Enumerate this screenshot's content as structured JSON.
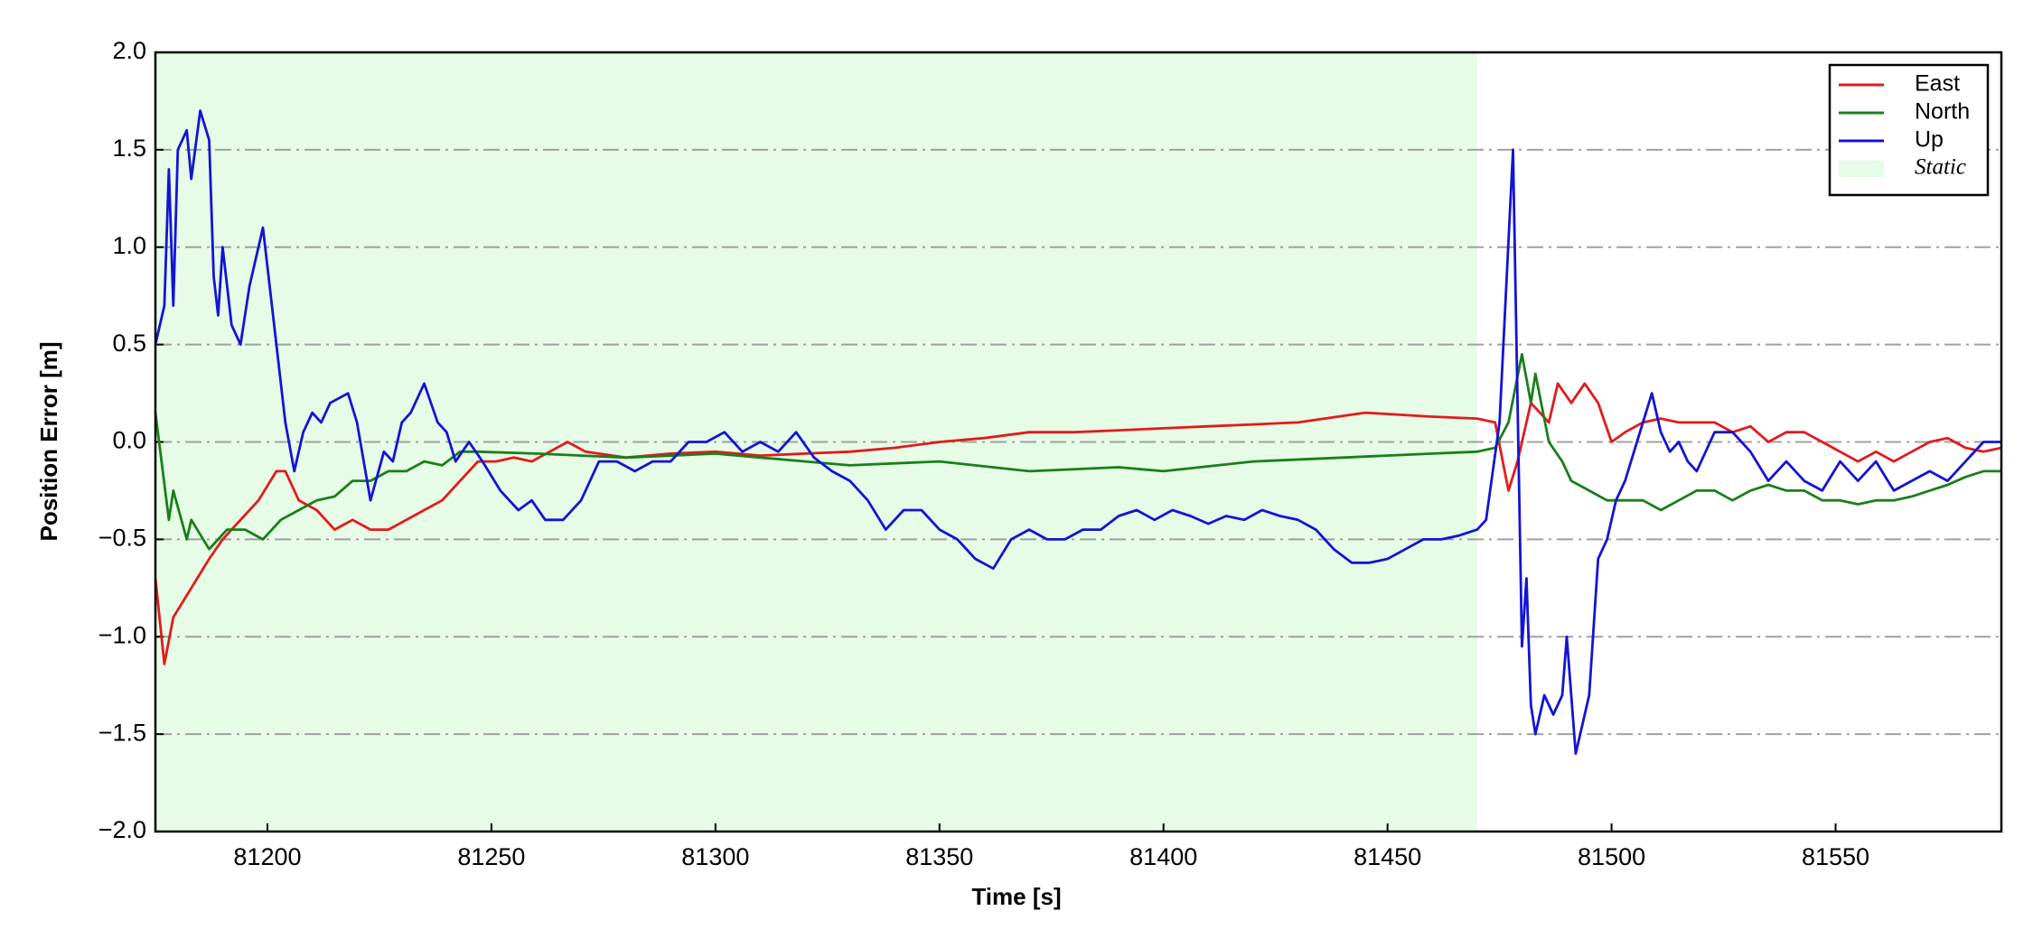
{
  "chart_data": {
    "type": "line",
    "xlabel": "Time [s]",
    "ylabel": "Position Error [m]",
    "xlim": [
      81175,
      81587
    ],
    "ylim": [
      -2.0,
      2.0
    ],
    "xticks": [
      81200,
      81250,
      81300,
      81350,
      81400,
      81450,
      81500,
      81550
    ],
    "yticks": [
      {
        "value": -2.0,
        "label": "−2.0"
      },
      {
        "value": -1.5,
        "label": "−1.5"
      },
      {
        "value": -1.0,
        "label": "−1.0"
      },
      {
        "value": -0.5,
        "label": "−0.5"
      },
      {
        "value": 0.0,
        "label": "0.0"
      },
      0.5,
      {
        "value": 1.0,
        "label": "1.0"
      },
      1.5,
      {
        "value": 2.0,
        "label": "2.0"
      }
    ],
    "grid": true,
    "legend": "upper right",
    "span": {
      "name": "Static",
      "color": "#e6fce6",
      "x": [
        81175,
        81470
      ]
    },
    "series": [
      {
        "name": "East",
        "color": "#e31a1c",
        "x": [
          81175,
          81177,
          81179,
          81183,
          81187,
          81190,
          81194,
          81198,
          81202,
          81204,
          81207,
          81211,
          81215,
          81219,
          81223,
          81227,
          81231,
          81235,
          81239,
          81243,
          81247,
          81251,
          81255,
          81259,
          81263,
          81267,
          81271,
          81280,
          81290,
          81300,
          81310,
          81320,
          81330,
          81340,
          81350,
          81360,
          81370,
          81380,
          81390,
          81400,
          81410,
          81420,
          81430,
          81445,
          81460,
          81470,
          81474,
          81477,
          81479,
          81482,
          81484,
          81486,
          81488,
          81491,
          81494,
          81497,
          81500,
          81503,
          81507,
          81511,
          81515,
          81519,
          81523,
          81527,
          81531,
          81535,
          81539,
          81543,
          81547,
          81551,
          81555,
          81559,
          81563,
          81567,
          81571,
          81575,
          81579,
          81583,
          81587
        ],
        "values": [
          -0.7,
          -1.14,
          -0.9,
          -0.75,
          -0.6,
          -0.5,
          -0.4,
          -0.3,
          -0.15,
          -0.15,
          -0.3,
          -0.35,
          -0.45,
          -0.4,
          -0.45,
          -0.45,
          -0.4,
          -0.35,
          -0.3,
          -0.2,
          -0.1,
          -0.1,
          -0.08,
          -0.1,
          -0.05,
          0.0,
          -0.05,
          -0.08,
          -0.06,
          -0.05,
          -0.07,
          -0.06,
          -0.05,
          -0.03,
          0.0,
          0.02,
          0.05,
          0.05,
          0.06,
          0.07,
          0.08,
          0.09,
          0.1,
          0.15,
          0.13,
          0.12,
          0.1,
          -0.25,
          -0.1,
          0.2,
          0.15,
          0.1,
          0.3,
          0.2,
          0.3,
          0.2,
          0.0,
          0.05,
          0.1,
          0.12,
          0.1,
          0.1,
          0.1,
          0.05,
          0.08,
          0.0,
          0.05,
          0.05,
          0.0,
          -0.05,
          -0.1,
          -0.05,
          -0.1,
          -0.05,
          0.0,
          0.02,
          -0.03,
          -0.05,
          -0.03
        ]
      },
      {
        "name": "North",
        "color": "#1a7f1a",
        "x": [
          81175,
          81178,
          81179,
          81182,
          81183,
          81187,
          81191,
          81195,
          81199,
          81203,
          81207,
          81211,
          81215,
          81219,
          81223,
          81227,
          81231,
          81235,
          81239,
          81243,
          81247,
          81260,
          81280,
          81300,
          81310,
          81320,
          81330,
          81350,
          81370,
          81390,
          81400,
          81420,
          81440,
          81460,
          81470,
          81474,
          81477,
          81480,
          81482,
          81483,
          81486,
          81489,
          81491,
          81495,
          81499,
          81503,
          81507,
          81511,
          81515,
          81519,
          81523,
          81527,
          81531,
          81535,
          81539,
          81543,
          81547,
          81551,
          81555,
          81559,
          81563,
          81567,
          81571,
          81575,
          81579,
          81583,
          81587
        ],
        "values": [
          0.15,
          -0.4,
          -0.25,
          -0.5,
          -0.4,
          -0.55,
          -0.45,
          -0.45,
          -0.5,
          -0.4,
          -0.35,
          -0.3,
          -0.28,
          -0.2,
          -0.2,
          -0.15,
          -0.15,
          -0.1,
          -0.12,
          -0.05,
          -0.05,
          -0.06,
          -0.08,
          -0.06,
          -0.08,
          -0.1,
          -0.12,
          -0.1,
          -0.15,
          -0.13,
          -0.15,
          -0.1,
          -0.08,
          -0.06,
          -0.05,
          -0.03,
          0.1,
          0.45,
          0.2,
          0.35,
          0.0,
          -0.1,
          -0.2,
          -0.25,
          -0.3,
          -0.3,
          -0.3,
          -0.35,
          -0.3,
          -0.25,
          -0.25,
          -0.3,
          -0.25,
          -0.22,
          -0.25,
          -0.25,
          -0.3,
          -0.3,
          -0.32,
          -0.3,
          -0.3,
          -0.28,
          -0.25,
          -0.22,
          -0.18,
          -0.15,
          -0.15
        ]
      },
      {
        "name": "Up",
        "color": "#1414d4",
        "x": [
          81175,
          81177,
          81178,
          81179,
          81180,
          81182,
          81183,
          81185,
          81187,
          81188,
          81189,
          81190,
          81192,
          81194,
          81196,
          81199,
          81202,
          81204,
          81206,
          81208,
          81210,
          81212,
          81214,
          81218,
          81220,
          81223,
          81226,
          81228,
          81230,
          81232,
          81235,
          81238,
          81240,
          81242,
          81245,
          81248,
          81252,
          81256,
          81259,
          81262,
          81266,
          81270,
          81274,
          81278,
          81282,
          81286,
          81290,
          81294,
          81298,
          81302,
          81306,
          81310,
          81314,
          81318,
          81322,
          81326,
          81330,
          81334,
          81338,
          81342,
          81346,
          81350,
          81354,
          81358,
          81362,
          81366,
          81370,
          81374,
          81378,
          81382,
          81386,
          81390,
          81394,
          81398,
          81402,
          81406,
          81410,
          81414,
          81418,
          81422,
          81426,
          81430,
          81434,
          81438,
          81442,
          81446,
          81450,
          81454,
          81458,
          81462,
          81466,
          81470,
          81472,
          81475,
          81478,
          81480,
          81481,
          81482,
          81483,
          81485,
          81487,
          81489,
          81490,
          81492,
          81493,
          81495,
          81497,
          81499,
          81501,
          81503,
          81505,
          81507,
          81509,
          81511,
          81513,
          81515,
          81517,
          81519,
          81523,
          81527,
          81531,
          81535,
          81539,
          81543,
          81547,
          81551,
          81555,
          81559,
          81563,
          81567,
          81571,
          81575,
          81579,
          81583,
          81587
        ],
        "values": [
          0.5,
          0.7,
          1.4,
          0.7,
          1.5,
          1.6,
          1.35,
          1.7,
          1.55,
          0.85,
          0.65,
          1.0,
          0.6,
          0.5,
          0.8,
          1.1,
          0.5,
          0.1,
          -0.15,
          0.05,
          0.15,
          0.1,
          0.2,
          0.25,
          0.1,
          -0.3,
          -0.05,
          -0.1,
          0.1,
          0.15,
          0.3,
          0.1,
          0.05,
          -0.1,
          0.0,
          -0.1,
          -0.25,
          -0.35,
          -0.3,
          -0.4,
          -0.4,
          -0.3,
          -0.1,
          -0.1,
          -0.15,
          -0.1,
          -0.1,
          0.0,
          0.0,
          0.05,
          -0.05,
          0.0,
          -0.05,
          0.05,
          -0.08,
          -0.15,
          -0.2,
          -0.3,
          -0.45,
          -0.35,
          -0.35,
          -0.45,
          -0.5,
          -0.6,
          -0.65,
          -0.5,
          -0.45,
          -0.5,
          -0.5,
          -0.45,
          -0.45,
          -0.38,
          -0.35,
          -0.4,
          -0.35,
          -0.38,
          -0.42,
          -0.38,
          -0.4,
          -0.35,
          -0.38,
          -0.4,
          -0.45,
          -0.55,
          -0.62,
          -0.62,
          -0.6,
          -0.55,
          -0.5,
          -0.5,
          -0.48,
          -0.45,
          -0.4,
          0.1,
          1.5,
          -1.05,
          -0.7,
          -1.35,
          -1.5,
          -1.3,
          -1.4,
          -1.3,
          -1.0,
          -1.6,
          -1.5,
          -1.3,
          -0.6,
          -0.5,
          -0.3,
          -0.2,
          -0.05,
          0.1,
          0.25,
          0.05,
          -0.05,
          0.0,
          -0.1,
          -0.15,
          0.05,
          0.05,
          -0.05,
          -0.2,
          -0.1,
          -0.2,
          -0.25,
          -0.1,
          -0.2,
          -0.1,
          -0.25,
          -0.2,
          -0.15,
          -0.2,
          -0.1,
          0.0,
          0.0
        ]
      }
    ]
  }
}
